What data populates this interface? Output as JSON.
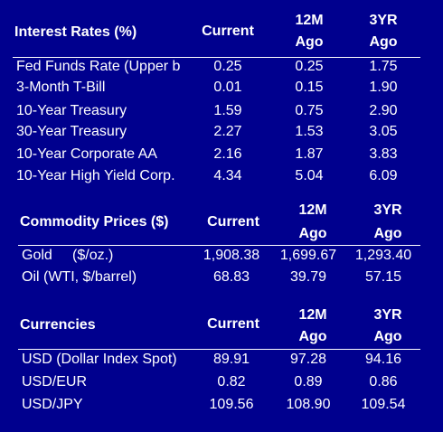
{
  "interest": {
    "title": "Interest Rates (%)",
    "col_current": "Current",
    "col_12m_a": "12M",
    "col_12m_b": "Ago",
    "col_3yr_a": "3YR",
    "col_3yr_b": "Ago",
    "rows": [
      {
        "label": "Fed Funds Rate (Upper b",
        "current": "0.25",
        "m12": "0.25",
        "yr3": "1.75"
      },
      {
        "label": "3-Month T-Bill",
        "current": "0.01",
        "m12": "0.15",
        "yr3": "1.90"
      },
      {
        "label": "10-Year Treasury",
        "current": "1.59",
        "m12": "0.75",
        "yr3": "2.90"
      },
      {
        "label": "30-Year Treasury",
        "current": "2.27",
        "m12": "1.53",
        "yr3": "3.05"
      },
      {
        "label": "10-Year Corporate AA",
        "current": "2.16",
        "m12": "1.87",
        "yr3": "3.83"
      },
      {
        "label": "10-Year High Yield Corp.",
        "current": "4.34",
        "m12": "5.04",
        "yr3": "6.09"
      }
    ]
  },
  "commodity": {
    "title": "Commodity Prices ($)",
    "col_current": "Current",
    "col_12m_a": "12M",
    "col_12m_b": "Ago",
    "col_3yr_a": "3YR",
    "col_3yr_b": "Ago",
    "rows": [
      {
        "label": "Gold     ($/oz.)",
        "current": "1,908.38",
        "m12": "1,699.67",
        "yr3": "1,293.40"
      },
      {
        "label": "Oil (WTI, $/barrel)",
        "current": "68.83",
        "m12": "39.79",
        "yr3": "57.15"
      }
    ]
  },
  "currencies": {
    "title": "Currencies",
    "col_current": "Current",
    "col_12m_a": "12M",
    "col_12m_b": "Ago",
    "col_3yr_a": "3YR",
    "col_3yr_b": "Ago",
    "rows": [
      {
        "label": "USD (Dollar Index Spot)",
        "current": "89.91",
        "m12": "97.28",
        "yr3": "94.16"
      },
      {
        "label": "USD/EUR",
        "current": "0.82",
        "m12": "0.89",
        "yr3": "0.86"
      },
      {
        "label": "USD/JPY",
        "current": "109.56",
        "m12": "108.90",
        "yr3": "109.54"
      }
    ]
  }
}
